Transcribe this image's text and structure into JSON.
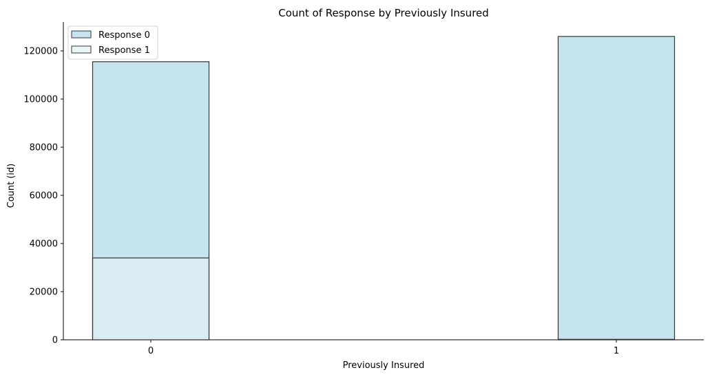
{
  "chart_data": {
    "type": "bar",
    "title": "Count of Response by Previously Insured",
    "xlabel": "Previously Insured",
    "ylabel": "Count (id)",
    "categories": [
      "0",
      "1"
    ],
    "series": [
      {
        "name": "Response 0",
        "values": [
          115500,
          126000
        ],
        "color": "#add8e6"
      },
      {
        "name": "Response 1",
        "values": [
          34000,
          200
        ],
        "color": "#e0f0f4"
      }
    ],
    "bar_display": "overlapping (Response 1 drawn on top of Response 0)",
    "ylim": [
      0,
      132000
    ],
    "yticks": [
      0,
      20000,
      40000,
      60000,
      80000,
      100000,
      120000
    ],
    "ytick_labels": [
      "0",
      "20000",
      "40000",
      "60000",
      "80000",
      "100000",
      "120000"
    ],
    "legend_position": "top-left",
    "grid": false
  }
}
